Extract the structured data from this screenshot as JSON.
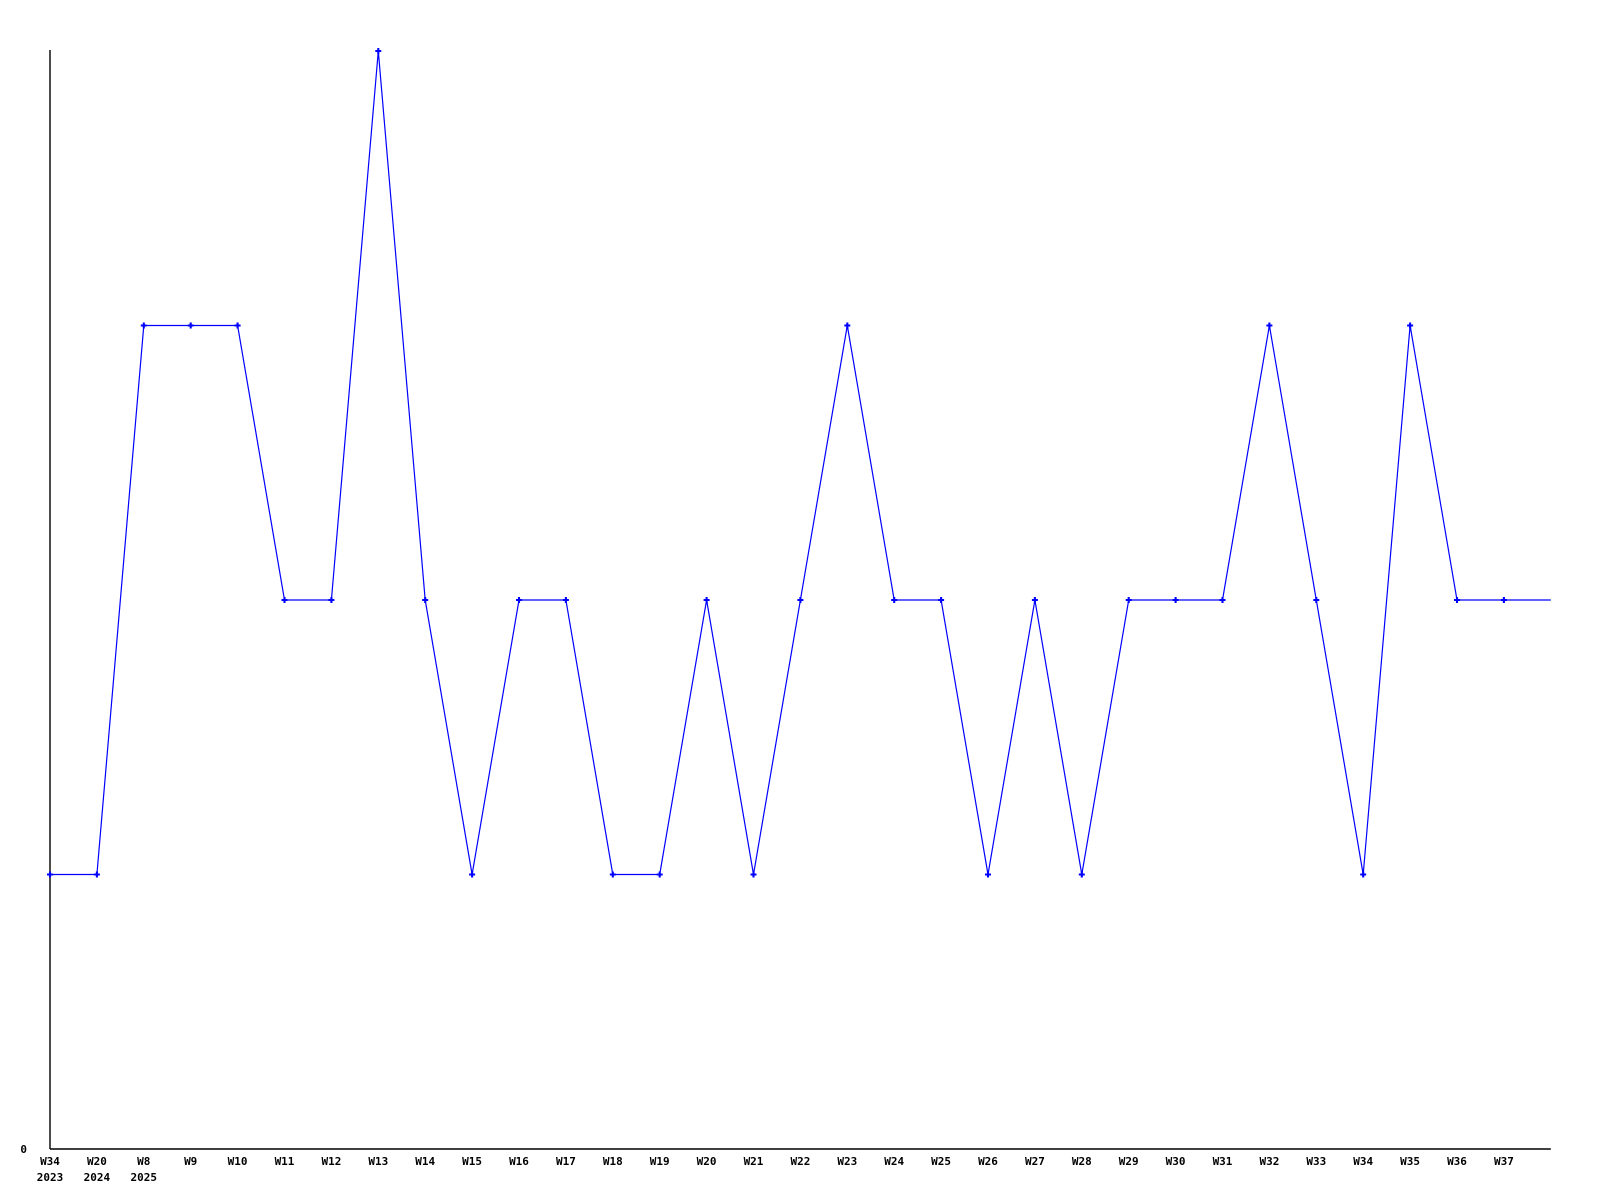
{
  "page": {
    "background_color": "#ffffff"
  },
  "chart_data": {
    "type": "line",
    "title": "",
    "xlabel": "",
    "ylabel": "",
    "ylim": [
      0,
      4.0
    ],
    "grid": false,
    "legend": null,
    "line_color": "#0000ff",
    "marker_color": "#0000ff",
    "marker_style": "plus",
    "axis_color": "#000000",
    "text_color": "#000000",
    "y_tick_labels": [
      "0"
    ],
    "y_origin_label": "0",
    "categories": [
      "W34",
      "W20",
      "W8",
      "W9",
      "W10",
      "W11",
      "W12",
      "W13",
      "W14",
      "W15",
      "W16",
      "W17",
      "W18",
      "W19",
      "W20",
      "W21",
      "W22",
      "W23",
      "W24",
      "W25",
      "W26",
      "W27",
      "W28",
      "W29",
      "W30",
      "W31",
      "W32",
      "W33",
      "W34",
      "W35",
      "W36",
      "W37",
      ""
    ],
    "year_sublabels": [
      "2023",
      "2024",
      "2025",
      "",
      "",
      "",
      "",
      "",
      "",
      "",
      "",
      "",
      "",
      "",
      "",
      "",
      "",
      "",
      "",
      "",
      "",
      "",
      "",
      "",
      "",
      "",
      "",
      "",
      "",
      "",
      "",
      "",
      ""
    ],
    "values": [
      1,
      1,
      3,
      3,
      3,
      2,
      2,
      4,
      2,
      1,
      2,
      2,
      1,
      1,
      2,
      1,
      2,
      3,
      2,
      2,
      1,
      2,
      1,
      2,
      2,
      2,
      3,
      2,
      1,
      3,
      2,
      2,
      2
    ],
    "trailing_point_has_marker": false,
    "trailing_point_has_label": false
  }
}
